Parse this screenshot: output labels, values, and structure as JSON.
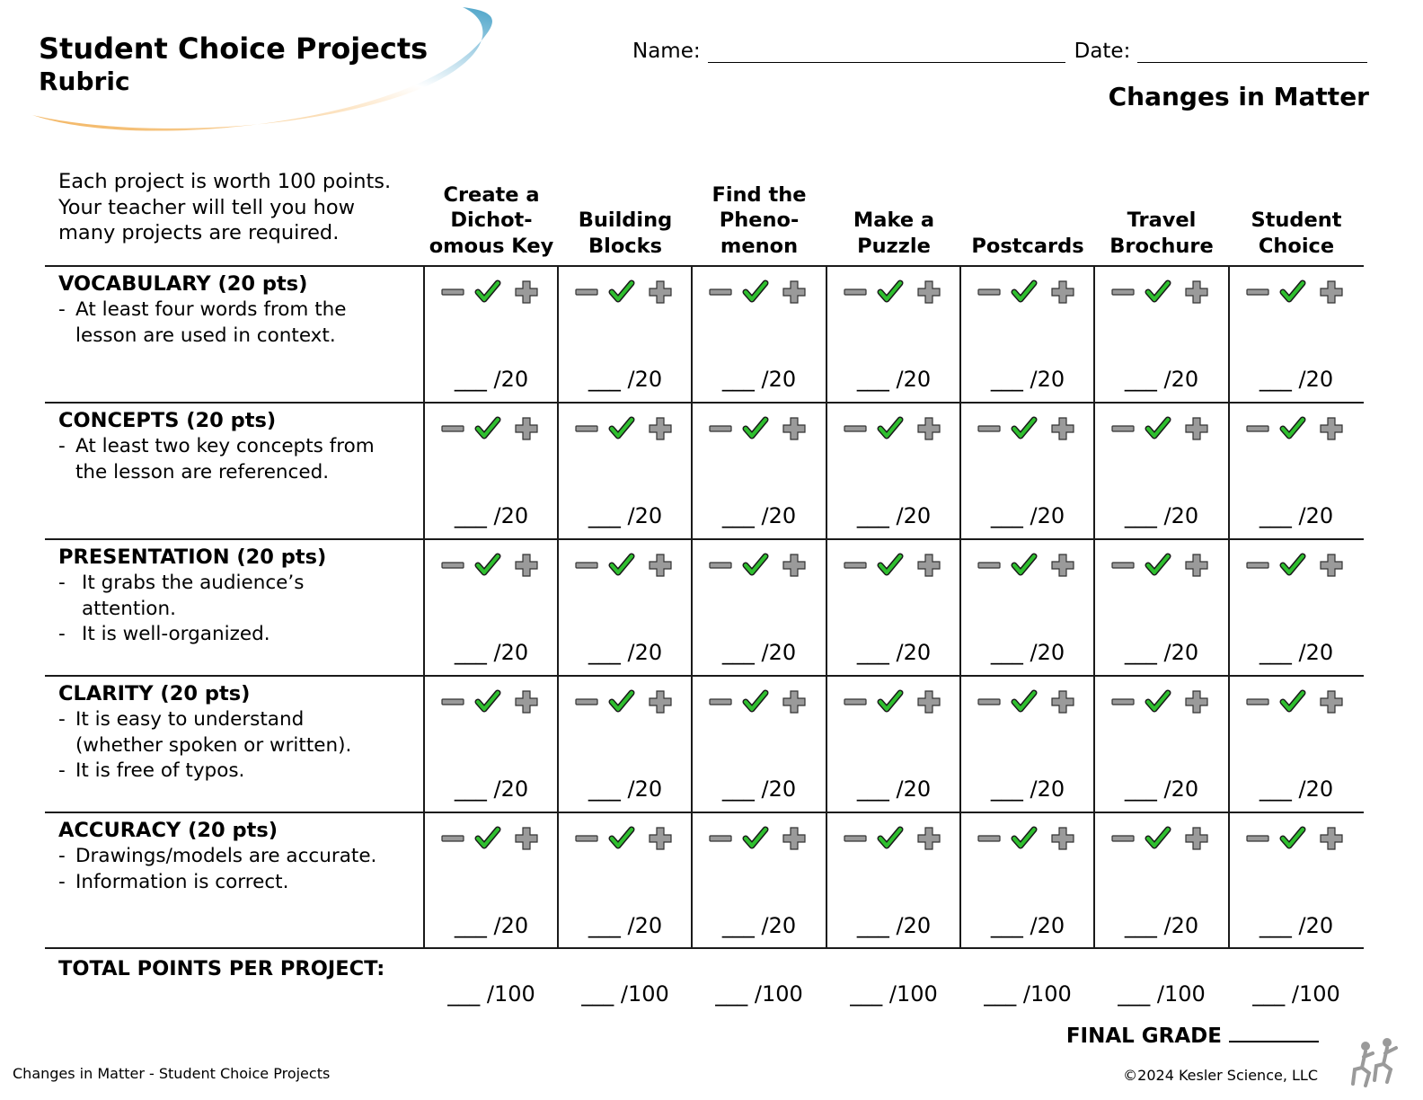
{
  "header": {
    "title": "Student Choice Projects",
    "subtitle": "Rubric",
    "name_label": "Name:",
    "date_label": "Date:",
    "topic": "Changes in Matter"
  },
  "intro": "Each project is worth 100 points. Your teacher will tell you how many projects are required.",
  "columns": [
    "Create a Dichot-omous Key",
    "Building Blocks",
    "Find the Pheno-menon",
    "Make a Puzzle",
    "Postcards",
    "Travel Brochure",
    "Student Choice"
  ],
  "criteria": [
    {
      "title": "VOCABULARY (20 pts)",
      "items": [
        "At least four words from the",
        "lesson are used in context."
      ],
      "score": "___ /20"
    },
    {
      "title": "CONCEPTS (20 pts)",
      "items": [
        "At least two key concepts from",
        "the lesson are referenced."
      ],
      "score": "___ /20"
    },
    {
      "title": "PRESENTATION (20 pts)",
      "items": [
        "It grabs the audience’s",
        "attention.",
        "It is well-organized."
      ],
      "score": "___ /20"
    },
    {
      "title": "CLARITY (20 pts)",
      "items": [
        "It is easy to understand",
        "(whether spoken or written).",
        "It is free of typos."
      ],
      "score": "___ /20"
    },
    {
      "title": "ACCURACY (20 pts)",
      "items": [
        "Drawings/models are accurate.",
        "Information is correct."
      ],
      "score": "___ /20"
    }
  ],
  "rating_icons": [
    "minus-icon",
    "checkmark-icon",
    "plus-icon"
  ],
  "colors": {
    "check": "#2fbf2f",
    "symbol": "#9a9a9a",
    "swoosh_blue": "#4aa3c8",
    "swoosh_orange": "#f2b25a"
  },
  "total": {
    "label": "TOTAL POINTS PER PROJECT:",
    "score": "___ /100"
  },
  "final_grade": "FINAL GRADE",
  "footer": {
    "left": "Changes in Matter - Student Choice Projects",
    "right": "©2024  Kesler Science, LLC"
  }
}
